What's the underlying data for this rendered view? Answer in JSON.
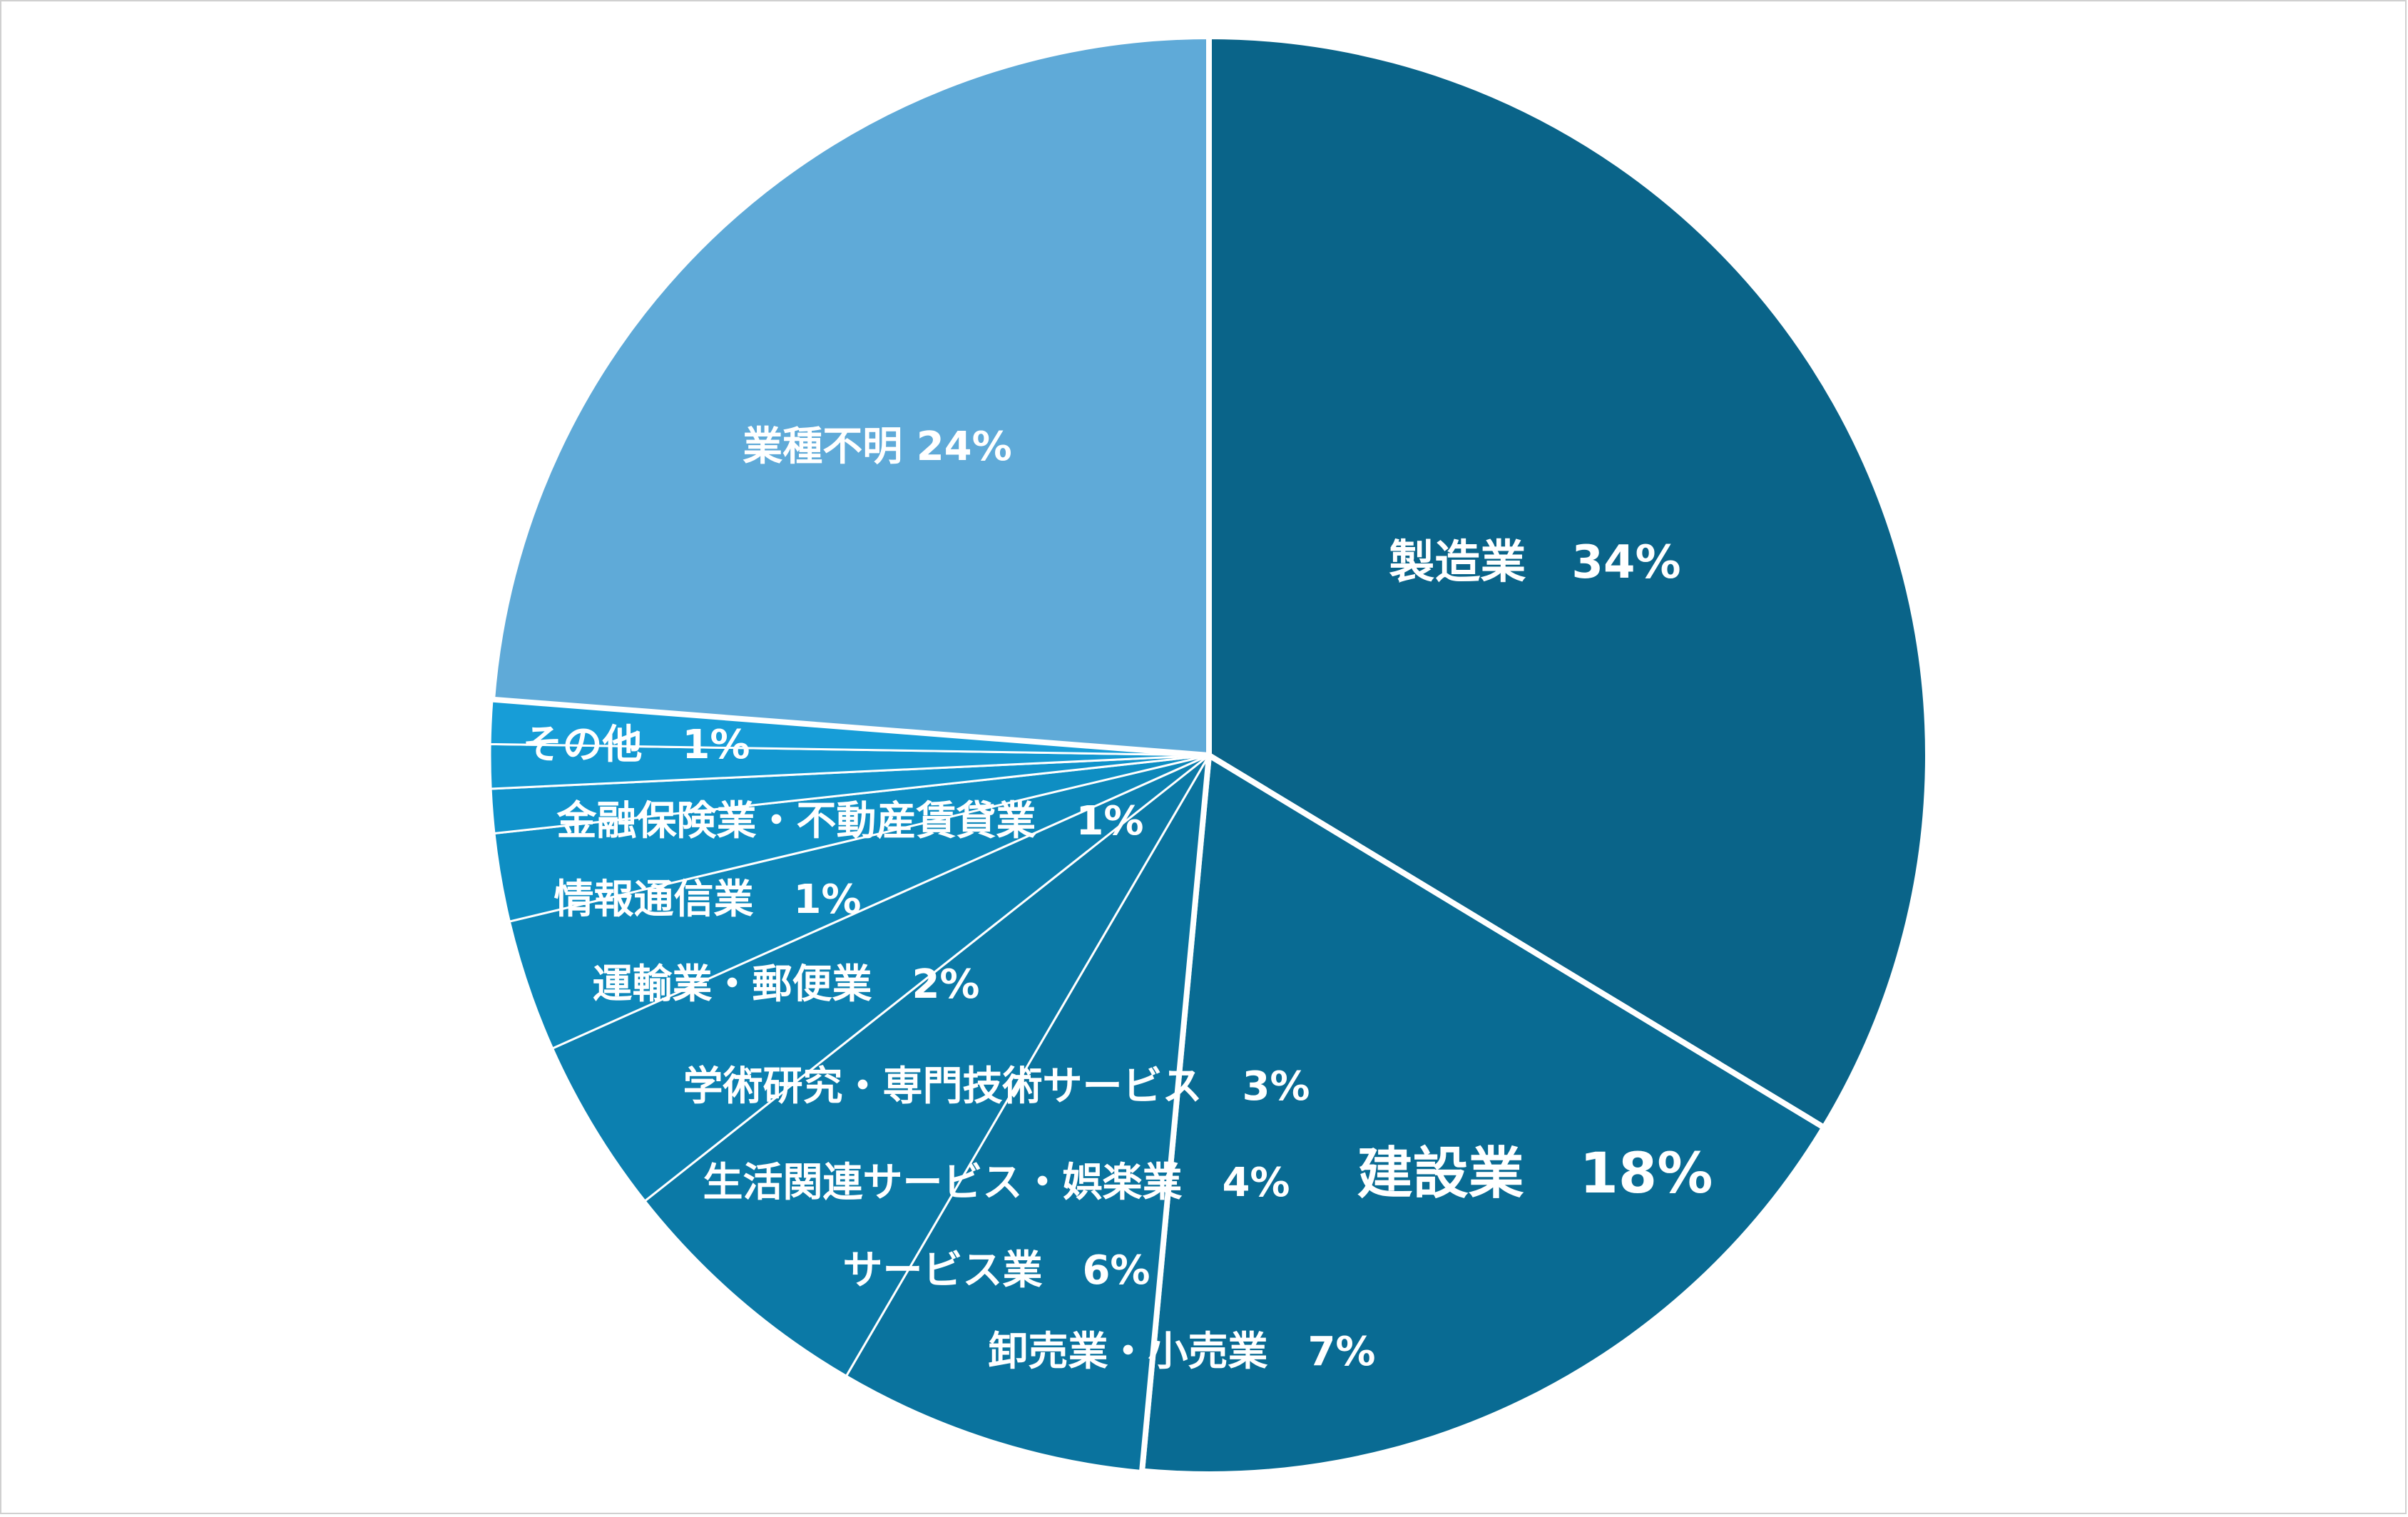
{
  "chart_data": {
    "type": "pie",
    "title": "",
    "slices": [
      {
        "label": "製造業",
        "pct_text": "34%",
        "value": 34,
        "color": "#0a6489",
        "label_color": "#ffffff",
        "highlight": false
      },
      {
        "label": "建設業",
        "pct_text": "18%",
        "value": 18,
        "color": "#096b93",
        "label_color": "#ffff00",
        "highlight": true
      },
      {
        "label": "卸売業・小売業",
        "pct_text": "7%",
        "value": 7,
        "color": "#0a739e",
        "label_color": "#ffffff",
        "highlight": false
      },
      {
        "label": "サービス業",
        "pct_text": "6%",
        "value": 6,
        "color": "#0b79a6",
        "label_color": "#ffffff",
        "highlight": false
      },
      {
        "label": "生活関連サービス・娯楽業",
        "pct_text": "4%",
        "value": 4,
        "color": "#0c80b0",
        "label_color": "#ffffff",
        "highlight": false
      },
      {
        "label": "学術研究・専門技術サービス",
        "pct_text": "3%",
        "value": 3,
        "color": "#0d87b9",
        "label_color": "#ffffff",
        "highlight": false
      },
      {
        "label": "運輸業・郵便業",
        "pct_text": "2%",
        "value": 2,
        "color": "#0e8ec3",
        "label_color": "#ffffff",
        "highlight": false
      },
      {
        "label": "情報通信業",
        "pct_text": "1%",
        "value": 1,
        "color": "#1093cb",
        "label_color": "#ffffff",
        "highlight": false
      },
      {
        "label": "金融保険業・不動産賃貸業",
        "pct_text": "1%",
        "value": 1,
        "color": "#1398d1",
        "label_color": "#ffffff",
        "highlight": false
      },
      {
        "label": "その他",
        "pct_text": "1%",
        "value": 1,
        "color": "#179dd7",
        "label_color": "#ffffff",
        "highlight": false
      },
      {
        "label": "業種不明",
        "pct_text": "24%",
        "value": 24,
        "color": "#5faad8",
        "label_color": "#ffffff",
        "highlight": false
      }
    ],
    "legend": "none"
  }
}
